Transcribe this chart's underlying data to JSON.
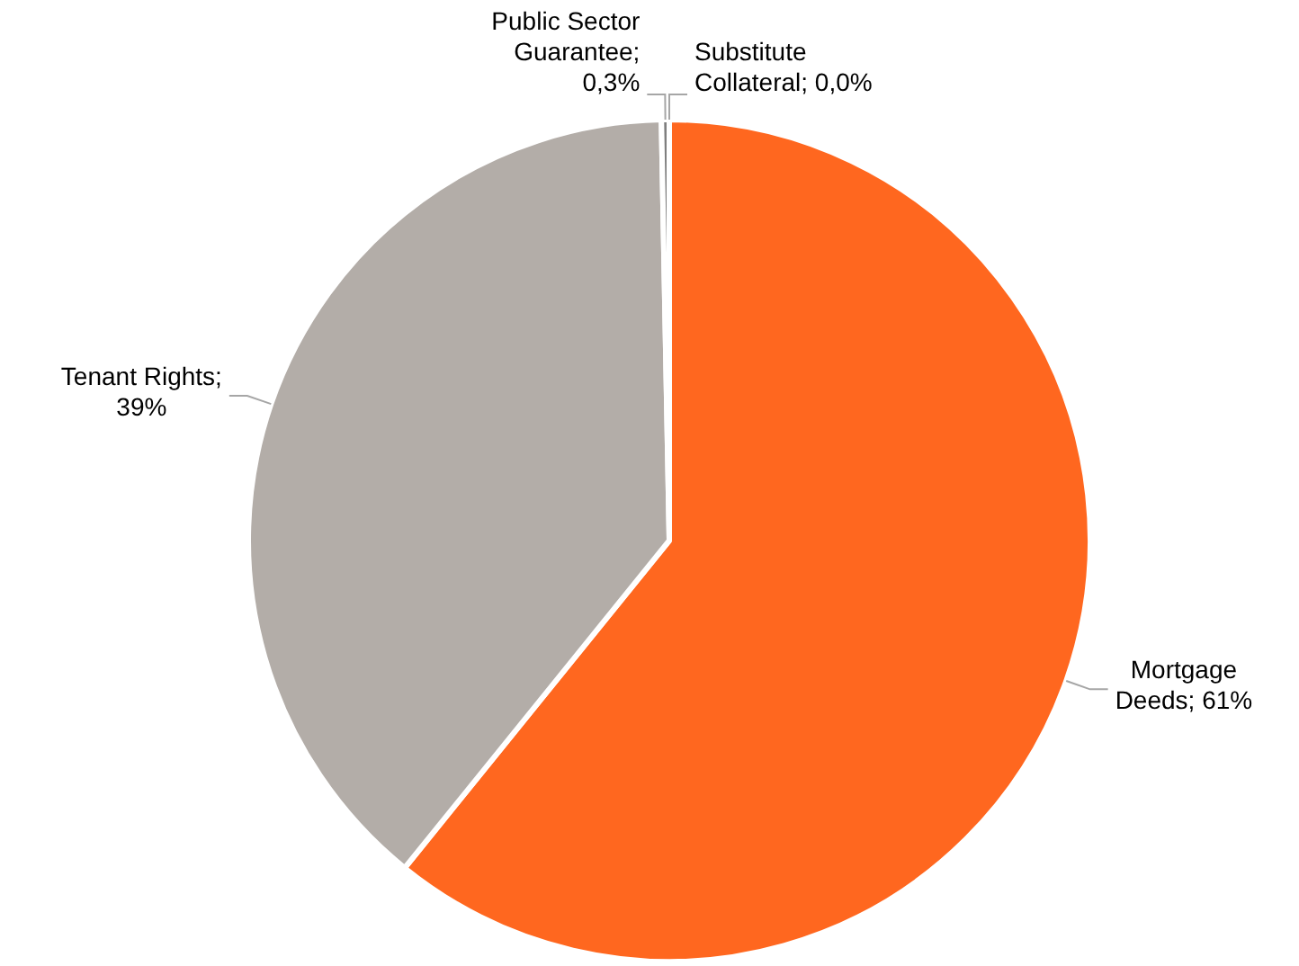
{
  "chart_data": {
    "type": "pie",
    "categories": [
      "Substitute Collateral",
      "Mortgage Deeds",
      "Tenant Rights",
      "Public Sector Guarantee"
    ],
    "values": [
      0.0,
      61,
      39,
      0.3
    ],
    "colors": [
      "#8c8c8c",
      "#ff671f",
      "#b3ada8",
      "#7f7f7f"
    ],
    "value_labels": [
      "; 0,0%",
      "; 61%",
      "; 39%",
      "; 0,3%"
    ],
    "legend": false
  }
}
